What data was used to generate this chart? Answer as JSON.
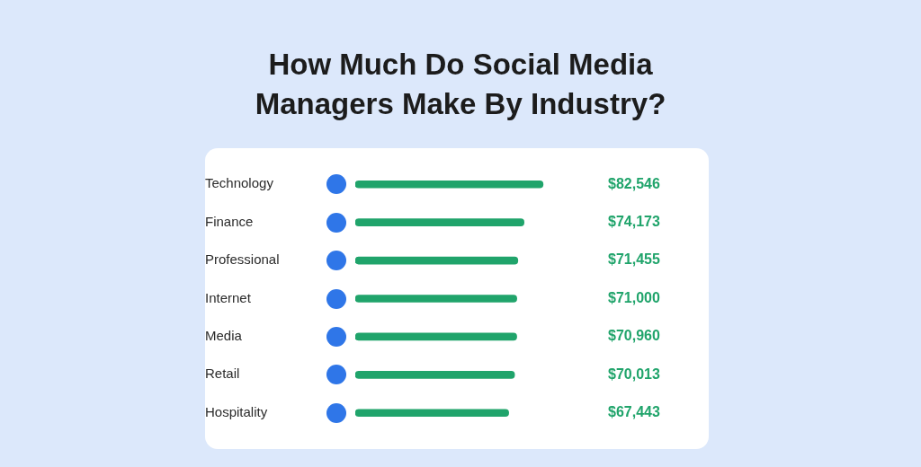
{
  "chart_data": {
    "type": "bar",
    "orientation": "horizontal",
    "title": "How Much Do Social Media Managers Make By Industry?",
    "categories": [
      "Technology",
      "Finance",
      "Professional",
      "Internet",
      "Media",
      "Retail",
      "Hospitality"
    ],
    "values": [
      82546,
      74173,
      71455,
      71000,
      70960,
      70013,
      67443
    ],
    "value_labels": [
      "$82,546",
      "$74,173",
      "$71,455",
      "$71,000",
      "$70,960",
      "$70,013",
      "$67,443"
    ],
    "color": "#20a46b",
    "grid": false,
    "legend": false
  }
}
